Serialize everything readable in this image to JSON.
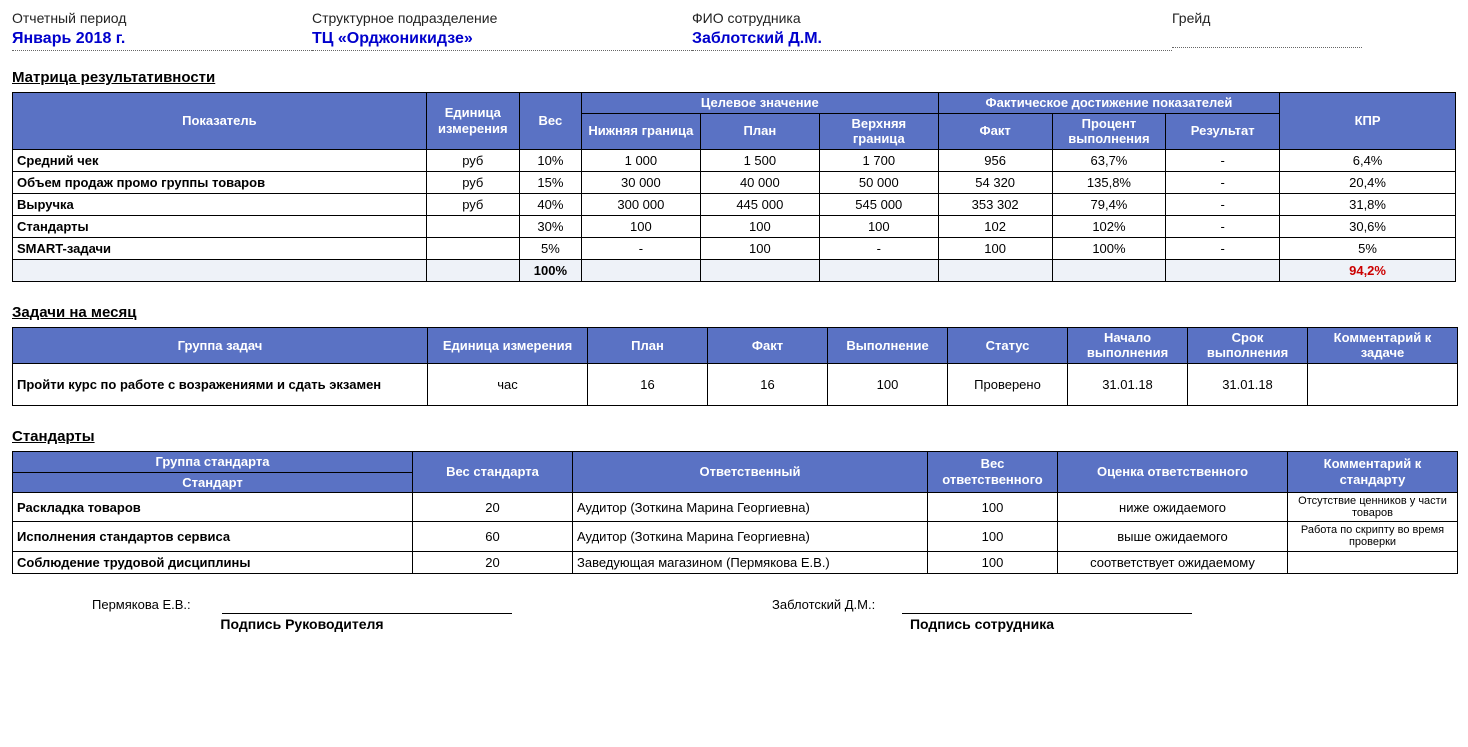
{
  "header": {
    "period_label": "Отчетный период",
    "period_value": "Январь 2018 г.",
    "unit_label": "Структурное подразделение",
    "unit_value": "ТЦ «Орджоникидзе»",
    "employee_label": "ФИО сотрудника",
    "employee_value": "Заблотский Д.М.",
    "grade_label": "Грейд",
    "grade_value": ""
  },
  "matrix": {
    "title": "Матрица результативности",
    "columns": {
      "indicator": "Показатель",
      "unit": "Единица измерения",
      "weight": "Вес",
      "target_group": "Целевое значение",
      "lower": "Нижняя граница",
      "plan": "План",
      "upper": "Верхняя граница",
      "fact_group": "Фактическое достижение показателей",
      "fact": "Факт",
      "percent": "Процент выполнения",
      "result": "Результат",
      "kpr": "КПР"
    },
    "rows": [
      {
        "indicator": "Средний чек",
        "unit": "руб",
        "weight": "10%",
        "lower": "1 000",
        "plan": "1 500",
        "upper": "1 700",
        "fact": "956",
        "percent": "63,7%",
        "result": "-",
        "kpr": "6,4%"
      },
      {
        "indicator": "Объем продаж промо группы товаров",
        "unit": "руб",
        "weight": "15%",
        "lower": "30 000",
        "plan": "40 000",
        "upper": "50 000",
        "fact": "54 320",
        "percent": "135,8%",
        "result": "-",
        "kpr": "20,4%"
      },
      {
        "indicator": "Выручка",
        "unit": "руб",
        "weight": "40%",
        "lower": "300 000",
        "plan": "445 000",
        "upper": "545 000",
        "fact": "353 302",
        "percent": "79,4%",
        "result": "-",
        "kpr": "31,8%"
      },
      {
        "indicator": "Стандарты",
        "unit": "",
        "weight": "30%",
        "lower": "100",
        "plan": "100",
        "upper": "100",
        "fact": "102",
        "percent": "102%",
        "result": "-",
        "kpr": "30,6%"
      },
      {
        "indicator": "SMART-задачи",
        "unit": "",
        "weight": "5%",
        "lower": "-",
        "plan": "100",
        "upper": "-",
        "fact": "100",
        "percent": "100%",
        "result": "-",
        "kpr": "5%"
      }
    ],
    "total_weight": "100%",
    "total_kpr": "94,2%"
  },
  "tasks": {
    "title": "Задачи на месяц",
    "columns": {
      "group": "Группа задач",
      "unit": "Единица измерения",
      "plan": "План",
      "fact": "Факт",
      "completion": "Выполнение",
      "status": "Статус",
      "start": "Начало выполнения",
      "deadline": "Срок выполнения",
      "comment": "Комментарий к задаче"
    },
    "rows": [
      {
        "group": "Пройти курс по работе с возражениями и сдать экзамен",
        "unit": "час",
        "plan": "16",
        "fact": "16",
        "completion": "100",
        "status": "Проверено",
        "start": "31.01.18",
        "deadline": "31.01.18",
        "comment": ""
      }
    ]
  },
  "standards": {
    "title": "Стандарты",
    "columns": {
      "group": "Группа стандарта",
      "weight": "Вес стандарта",
      "responsible": "Ответственный",
      "resp_weight": "Вес ответственного",
      "rating": "Оценка ответственного",
      "comment": "Комментарий к стандарту",
      "standard_sub": "Стандарт"
    },
    "rows": [
      {
        "group": "Раскладка товаров",
        "weight": "20",
        "responsible": "Аудитор (Зоткина Марина Георгиевна)",
        "resp_weight": "100",
        "rating": "ниже ожидаемого",
        "comment": "Отсутствие ценников у части товаров"
      },
      {
        "group": "Исполнения стандартов сервиса",
        "weight": "60",
        "responsible": "Аудитор (Зоткина Марина Георгиевна)",
        "resp_weight": "100",
        "rating": "выше ожидаемого",
        "comment": "Работа по скрипту во время проверки"
      },
      {
        "group": "Соблюдение трудовой дисциплины",
        "weight": "20",
        "responsible": "Заведующая магазином (Пермякова Е.В.)",
        "resp_weight": "100",
        "rating": "соответствует ожидаемому",
        "comment": ""
      }
    ]
  },
  "footer": {
    "manager_name": "Пермякова Е.В.:",
    "manager_caption": "Подпись Руководителя",
    "employee_name": "Заблотский Д.М.:",
    "employee_caption": "Подпись сотрудника"
  },
  "style": {
    "header_bg": "#5a72c4",
    "header_fg": "#ffffff",
    "accent_blue": "#0000cc",
    "total_bg": "#eef2f8",
    "kpr_total_color": "#cc0000",
    "border_color": "#000000"
  }
}
